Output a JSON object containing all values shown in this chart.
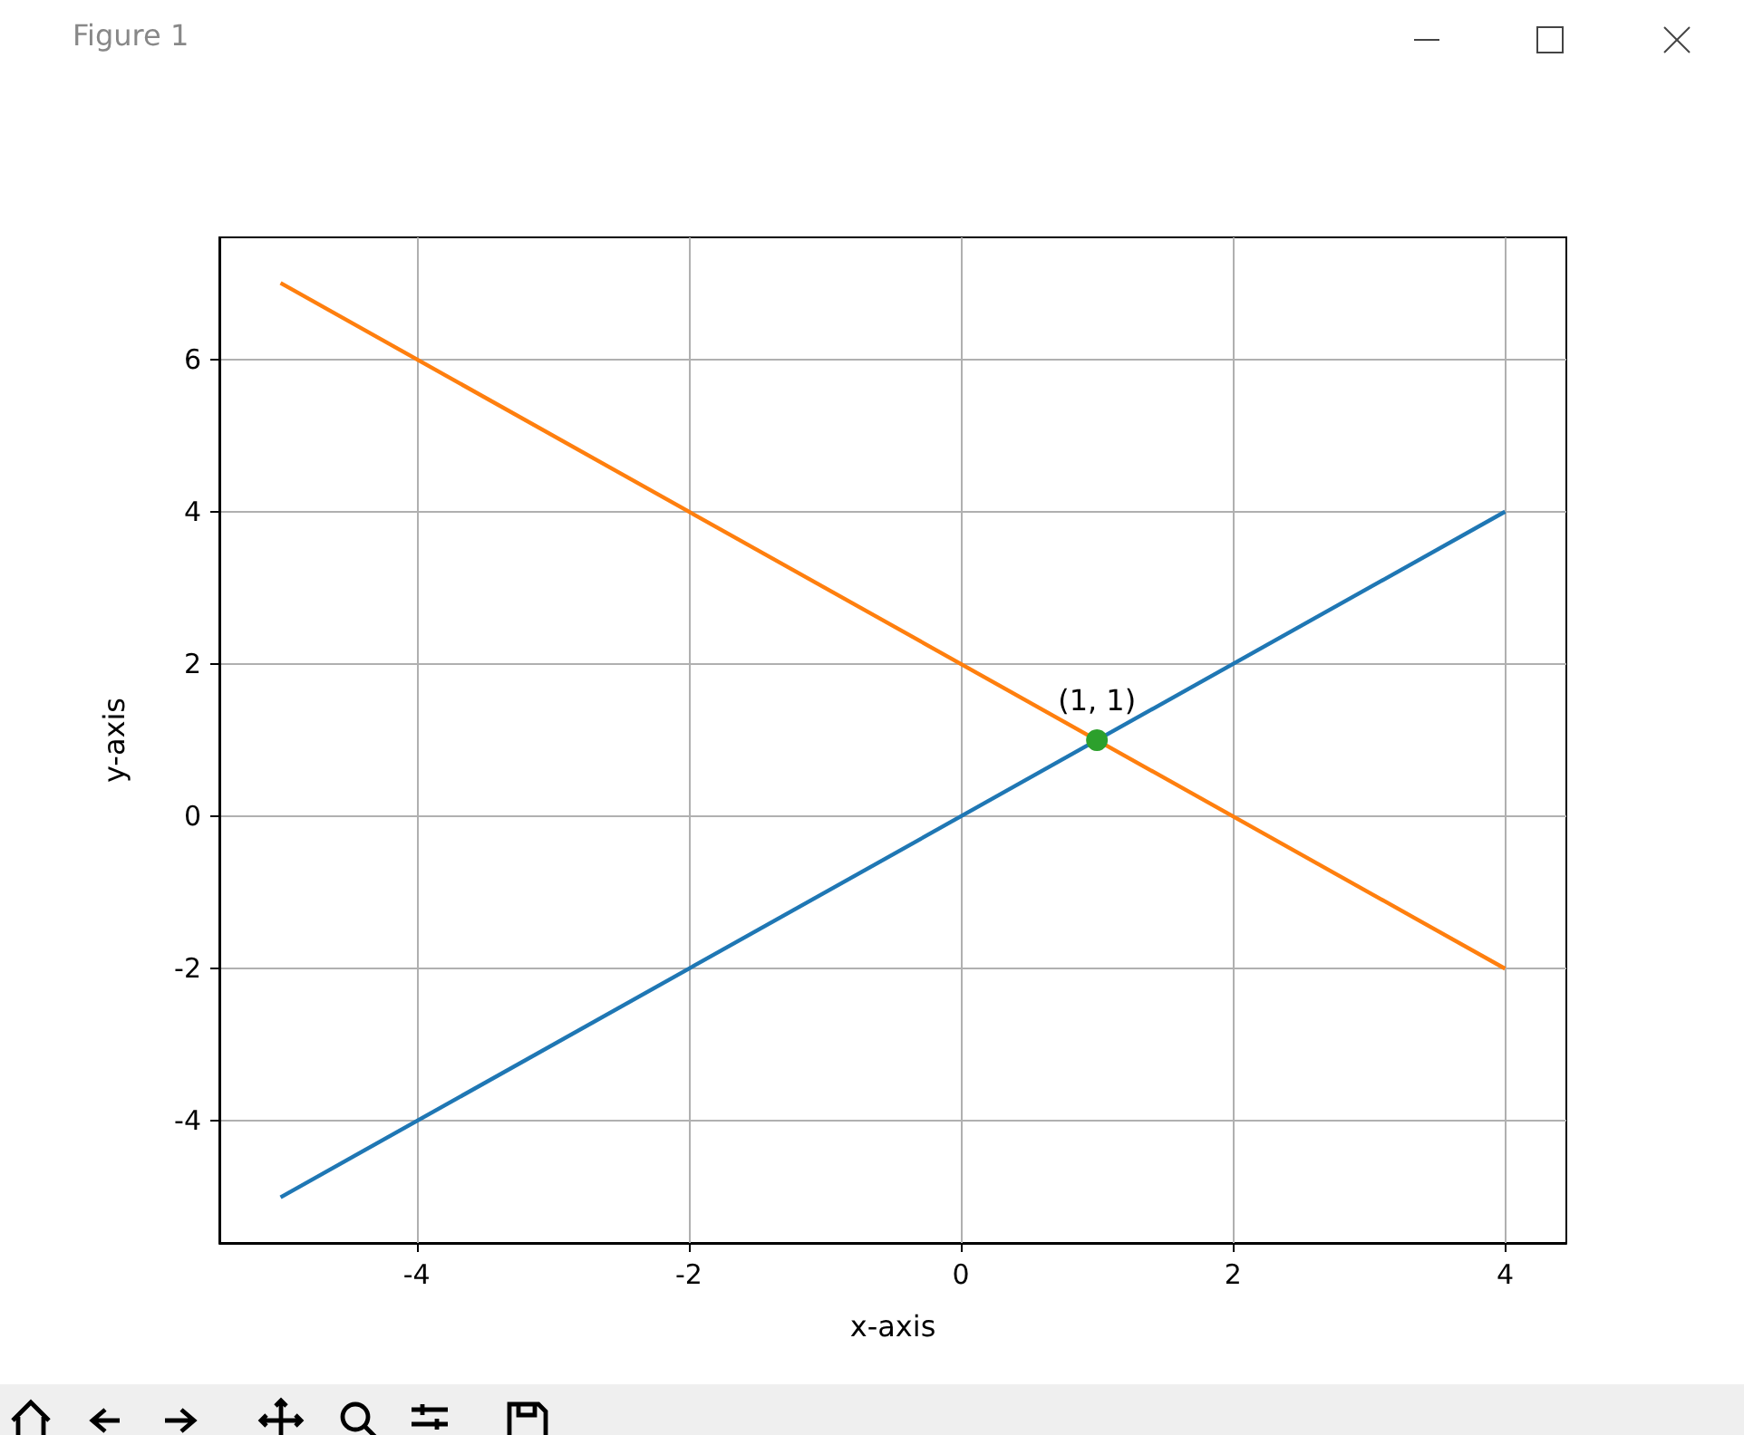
{
  "chart_data": {
    "type": "line",
    "xlabel": "x-axis",
    "ylabel": "y-axis",
    "annotations": [
      "Figure 1",
      {
        "text": "(1, 1)",
        "x": 1,
        "y": 1
      }
    ],
    "series": [
      {
        "color": "#1f77b4",
        "x": [
          -5,
          4
        ],
        "values": [
          -5,
          4
        ]
      },
      {
        "color": "#ff7f0e",
        "x": [
          -5,
          4
        ],
        "values": [
          7,
          -2
        ]
      },
      {
        "type": "scatter",
        "color": "#2ca02c",
        "marker": "circle",
        "x": [
          1
        ],
        "values": [
          1
        ]
      }
    ],
    "xlim": [
      -5.45,
      4.45
    ],
    "xticks": [
      -4,
      -2,
      0,
      2,
      4
    ],
    "ylim": [
      -5.6,
      7.6
    ],
    "yticks": [
      -4,
      -2,
      0,
      2,
      4,
      6
    ],
    "grid": true
  }
}
